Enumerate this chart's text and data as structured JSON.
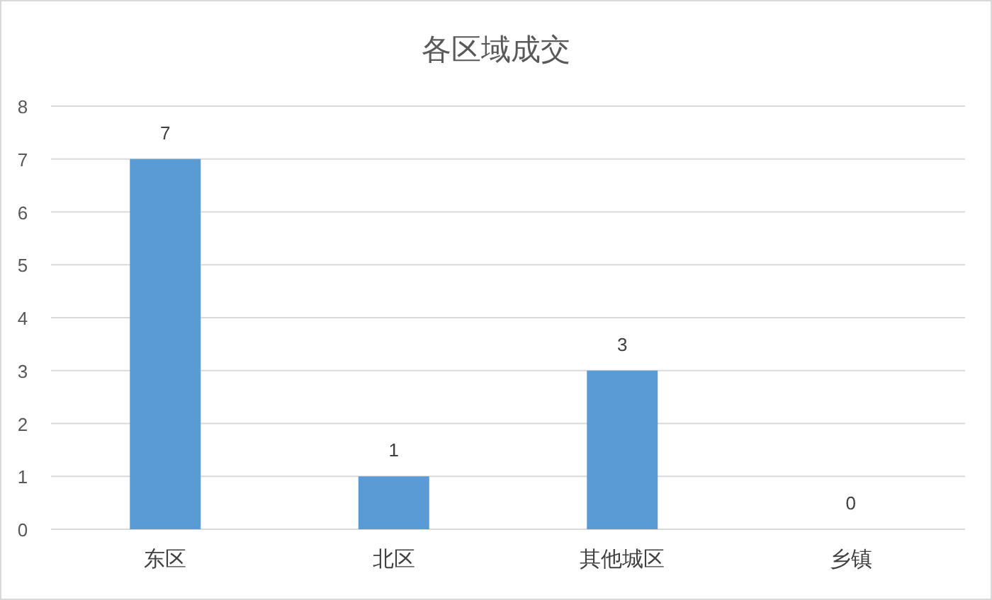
{
  "chart_data": {
    "type": "bar",
    "title": "各区域成交",
    "categories": [
      "东区",
      "北区",
      "其他城区",
      "乡镇"
    ],
    "values": [
      7,
      1,
      3,
      0
    ],
    "color": "#5b9bd5",
    "ylim": [
      0,
      8
    ],
    "yticks": [
      0,
      1,
      2,
      3,
      4,
      5,
      6,
      7,
      8
    ],
    "grid": "y",
    "data_labels": true
  }
}
